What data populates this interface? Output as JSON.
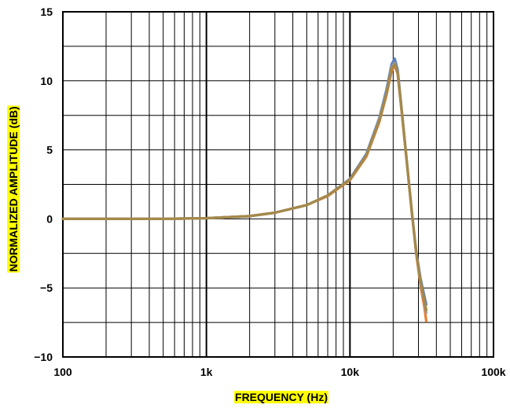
{
  "chart_data": {
    "type": "line",
    "xlabel": "FREQUENCY (Hz)",
    "ylabel": "NORMALIZED AMPLITUDE (dB)",
    "x_scale": "log",
    "xlim": [
      100,
      100000
    ],
    "ylim": [
      -10,
      15
    ],
    "x_ticks": [
      {
        "value": 100,
        "label": "100"
      },
      {
        "value": 1000,
        "label": "1k"
      },
      {
        "value": 10000,
        "label": "10k"
      },
      {
        "value": 100000,
        "label": "100k"
      }
    ],
    "y_ticks": [
      {
        "value": 15,
        "label": "15"
      },
      {
        "value": 10,
        "label": "10"
      },
      {
        "value": 5,
        "label": "5"
      },
      {
        "value": 0,
        "label": "0"
      },
      {
        "value": -5,
        "label": "−5"
      },
      {
        "value": -10,
        "label": "−10"
      }
    ],
    "grid": true,
    "axis_title_highlight": "#ffff00",
    "series": [
      {
        "color": "#5b7fbf",
        "x": [
          100,
          200,
          500,
          1000,
          2000,
          3000,
          5000,
          7000,
          10000,
          13000,
          16000,
          18000,
          19500,
          20500,
          21500,
          23000,
          25000,
          27000,
          29000,
          31000,
          33000,
          34000
        ],
        "y": [
          0,
          0,
          0,
          0.05,
          0.2,
          0.45,
          1.0,
          1.7,
          2.9,
          4.7,
          7.3,
          9.4,
          11.2,
          11.6,
          10.8,
          7.8,
          4.0,
          0.5,
          -2.4,
          -4.3,
          -5.6,
          -6.2
        ]
      },
      {
        "color": "#e87d2f",
        "x": [
          100,
          200,
          500,
          1000,
          2000,
          3000,
          5000,
          7000,
          10000,
          13000,
          16000,
          18000,
          19500,
          20500,
          21500,
          23000,
          25000,
          27000,
          29000,
          31000,
          33000,
          34000
        ],
        "y": [
          0,
          0,
          0,
          0.05,
          0.2,
          0.45,
          1.0,
          1.65,
          2.8,
          4.5,
          7.0,
          9.0,
          10.7,
          11.1,
          10.5,
          7.6,
          3.9,
          0.4,
          -2.6,
          -4.8,
          -6.4,
          -7.4
        ]
      },
      {
        "color": "#9c9c9c",
        "x": [
          100,
          200,
          500,
          1000,
          2000,
          3000,
          5000,
          7000,
          10000,
          13000,
          16000,
          18000,
          19500,
          20500,
          21500,
          23000,
          25000,
          27000,
          29000,
          31000,
          33000,
          34000
        ],
        "y": [
          0,
          0,
          0,
          0.05,
          0.2,
          0.45,
          1.0,
          1.7,
          2.85,
          4.6,
          7.2,
          9.2,
          11.0,
          11.3,
          10.6,
          7.7,
          3.95,
          0.45,
          -2.5,
          -4.6,
          -6.0,
          -6.8
        ]
      },
      {
        "color": "#a4894a",
        "x": [
          100,
          200,
          500,
          1000,
          2000,
          3000,
          5000,
          7000,
          10000,
          13000,
          16000,
          18000,
          19500,
          20500,
          21500,
          23000,
          25000,
          27000,
          29000,
          31000,
          33000,
          34000
        ],
        "y": [
          0,
          0,
          0,
          0.05,
          0.2,
          0.45,
          1.0,
          1.7,
          2.85,
          4.6,
          7.1,
          9.1,
          10.9,
          11.2,
          10.6,
          7.7,
          3.95,
          0.45,
          -2.5,
          -4.5,
          -5.9,
          -6.6
        ]
      }
    ]
  }
}
